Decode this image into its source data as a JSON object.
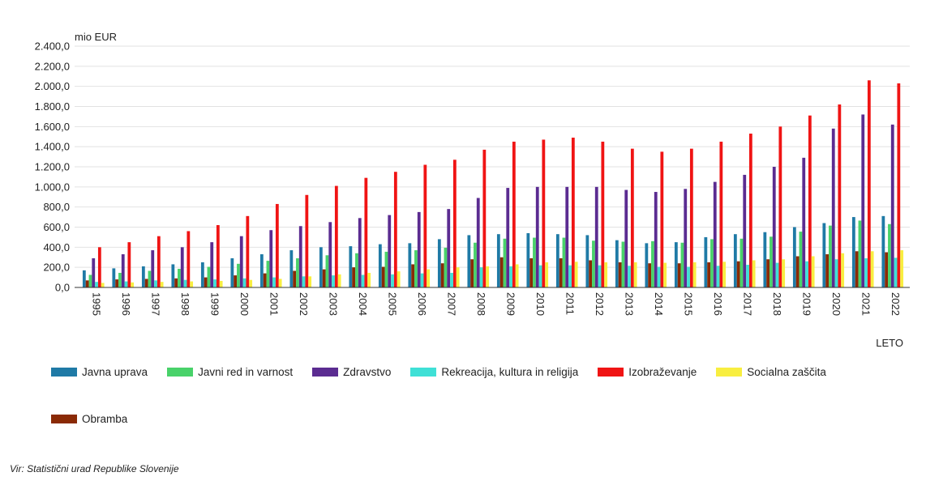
{
  "chart_data": {
    "type": "bar",
    "ylabel": "mio EUR",
    "xlabel": "LETO",
    "ylim": [
      0,
      2400
    ],
    "yticks": [
      "0,0",
      "200,0",
      "400,0",
      "600,0",
      "800,0",
      "1.000,0",
      "1.200,0",
      "1.400,0",
      "1.600,0",
      "1.800,0",
      "2.000,0",
      "2.200,0",
      "2.400,0"
    ],
    "grid": true,
    "legend_placement": "bottom",
    "categories": [
      "1995",
      "1996",
      "1997",
      "1998",
      "1999",
      "2000",
      "2001",
      "2002",
      "2003",
      "2004",
      "2005",
      "2006",
      "2007",
      "2008",
      "2009",
      "2010",
      "2011",
      "2012",
      "2013",
      "2014",
      "2015",
      "2016",
      "2017",
      "2018",
      "2019",
      "2020",
      "2021",
      "2022"
    ],
    "series": [
      {
        "name": "Javna uprava",
        "color": "#1f7aa6",
        "values": [
          170,
          190,
          210,
          230,
          250,
          290,
          330,
          370,
          400,
          410,
          430,
          440,
          480,
          520,
          530,
          540,
          530,
          520,
          470,
          440,
          450,
          500,
          530,
          550,
          600,
          640,
          700,
          710
        ]
      },
      {
        "name": "Javni red in varnost",
        "color": "#49d26a",
        "values": [
          125,
          145,
          165,
          185,
          205,
          235,
          265,
          290,
          320,
          340,
          355,
          370,
          395,
          445,
          485,
          495,
          495,
          465,
          455,
          460,
          445,
          480,
          485,
          505,
          555,
          615,
          665,
          630
        ]
      },
      {
        "name": "Zdravstvo",
        "color": "#5b2c91",
        "values": [
          290,
          330,
          370,
          400,
          450,
          510,
          570,
          610,
          650,
          690,
          720,
          750,
          780,
          890,
          990,
          1000,
          1000,
          1000,
          970,
          950,
          980,
          1050,
          1120,
          1200,
          1290,
          1580,
          1720,
          1620
        ]
      },
      {
        "name": "Rekreacija, kultura in religija",
        "color": "#3fe0d6",
        "values": [
          55,
          60,
          70,
          75,
          80,
          90,
          100,
          110,
          120,
          125,
          130,
          140,
          145,
          200,
          210,
          220,
          220,
          220,
          215,
          205,
          205,
          215,
          225,
          245,
          260,
          280,
          290,
          295
        ]
      },
      {
        "name": "Izobraževanje",
        "color": "#f01414",
        "values": [
          400,
          450,
          510,
          560,
          620,
          710,
          830,
          920,
          1010,
          1090,
          1150,
          1220,
          1270,
          1370,
          1450,
          1470,
          1490,
          1450,
          1380,
          1350,
          1380,
          1450,
          1530,
          1600,
          1710,
          1820,
          2060,
          2030
        ]
      },
      {
        "name": "Socialna zaščita",
        "color": "#f8ee40",
        "values": [
          45,
          50,
          55,
          60,
          65,
          75,
          85,
          110,
          130,
          145,
          160,
          180,
          200,
          210,
          230,
          250,
          255,
          250,
          250,
          245,
          250,
          255,
          270,
          280,
          310,
          340,
          360,
          370
        ]
      },
      {
        "name": "Obramba",
        "color": "#8a2a05",
        "values": [
          70,
          80,
          85,
          90,
          100,
          120,
          140,
          165,
          180,
          200,
          205,
          230,
          240,
          280,
          300,
          290,
          290,
          270,
          250,
          240,
          240,
          250,
          260,
          280,
          310,
          330,
          360,
          350
        ]
      }
    ]
  },
  "legend": {
    "row1": [
      "Javna uprava",
      "Javni red in varnost",
      "Zdravstvo",
      "Rekreacija, kultura in religija",
      "Izobraževanje",
      "Socialna zaščita"
    ],
    "row2": [
      "Obramba"
    ]
  },
  "source": "Vir: Statistični urad Republike Slovenije"
}
